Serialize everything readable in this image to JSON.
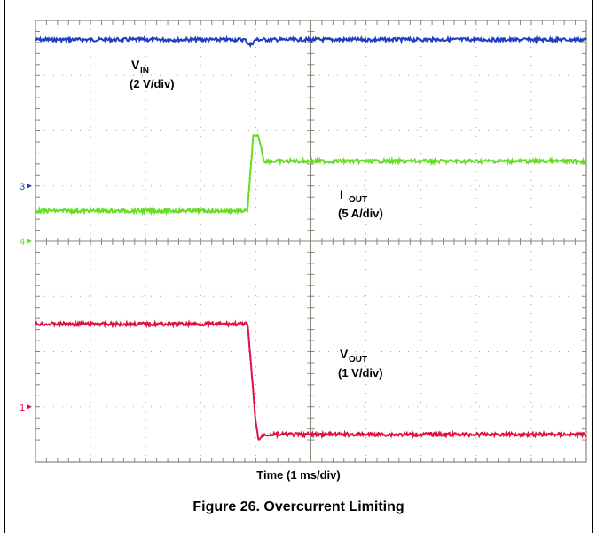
{
  "chart_data": {
    "type": "line",
    "title": "Figure 26. Overcurrent Limiting",
    "xlabel": "Time (1 ms/div)",
    "x_unit": "ms",
    "xlim": [
      0,
      10
    ],
    "ylim": [
      -4,
      4
    ],
    "grid": true,
    "series": [
      {
        "name": "VIN",
        "label_main": "V",
        "label_sub": "IN",
        "label_scale": "(2 V/div)",
        "color": "#1f3fbf",
        "ground_marker": "3",
        "ground_div": 1.0,
        "x": [
          0,
          3.8,
          3.9,
          4.0,
          10
        ],
        "y": [
          3.65,
          3.65,
          3.55,
          3.65,
          3.65
        ]
      },
      {
        "name": "IOUT",
        "label_main": "I",
        "label_sub": "OUT",
        "label_scale": "(5 A/div)",
        "color": "#66dd22",
        "ground_marker": "4",
        "ground_div": 0.0,
        "x": [
          0,
          3.85,
          3.95,
          4.0,
          4.05,
          4.15,
          10
        ],
        "y": [
          0.55,
          0.55,
          1.9,
          1.9,
          1.9,
          1.45,
          1.45
        ]
      },
      {
        "name": "VOUT",
        "label_main": "V",
        "label_sub": "OUT",
        "label_scale": "(1 V/div)",
        "color": "#dd1144",
        "ground_marker": "1",
        "ground_div": -3.0,
        "x": [
          0,
          3.85,
          4.0,
          4.05,
          4.15,
          10
        ],
        "y": [
          -1.5,
          -1.5,
          -3.3,
          -3.6,
          -3.5,
          -3.5
        ]
      }
    ]
  }
}
